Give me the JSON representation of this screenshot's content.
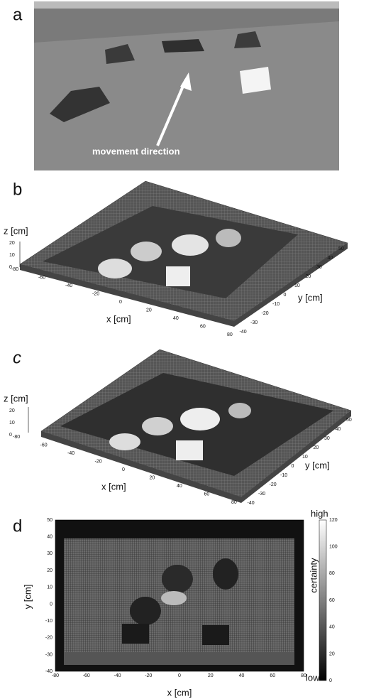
{
  "panels": [
    {
      "label": "a",
      "annotation": "movement direction"
    },
    {
      "label": "b",
      "z_axis": {
        "label": "z [cm]",
        "ticks": [
          "20",
          "10",
          "0"
        ]
      },
      "x_axis": {
        "label": "x [cm]",
        "ticks": [
          "-80",
          "-60",
          "-40",
          "-20",
          "0",
          "20",
          "40",
          "60",
          "80"
        ]
      },
      "y_axis": {
        "label": "y [cm]",
        "ticks": [
          "50",
          "40",
          "30",
          "20",
          "10",
          "0",
          "-10",
          "-20",
          "-30",
          "-40"
        ]
      }
    },
    {
      "label": "c",
      "z_axis": {
        "label": "z [cm]",
        "ticks": [
          "20",
          "10",
          "0"
        ]
      },
      "x_axis": {
        "label": "x [cm]",
        "ticks": [
          "-80",
          "-60",
          "-40",
          "-20",
          "0",
          "20",
          "40",
          "60",
          "80"
        ]
      },
      "y_axis": {
        "label": "y [cm]",
        "ticks": [
          "50",
          "40",
          "30",
          "20",
          "10",
          "0",
          "-10",
          "-20",
          "-30",
          "-40"
        ]
      }
    },
    {
      "label": "d",
      "x_axis": {
        "label": "x [cm]",
        "ticks": [
          "-80",
          "-60",
          "-40",
          "-20",
          "0",
          "20",
          "40",
          "60",
          "80"
        ]
      },
      "y_axis": {
        "label": "y [cm]",
        "ticks": [
          "50",
          "40",
          "30",
          "20",
          "10",
          "0",
          "-10",
          "-20",
          "-30",
          "-40"
        ]
      },
      "colorbar": {
        "label": "certainty",
        "high": "high",
        "low": "low",
        "ticks": [
          "120",
          "100",
          "80",
          "60",
          "40",
          "20",
          "0"
        ]
      }
    }
  ]
}
